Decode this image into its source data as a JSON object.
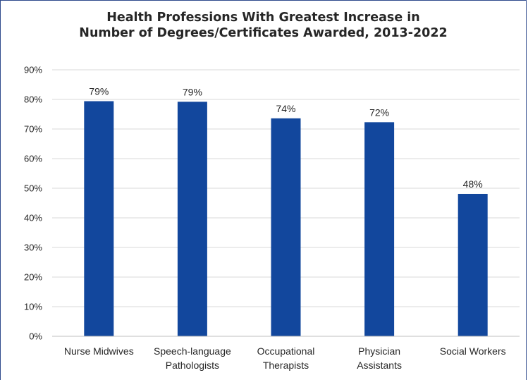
{
  "chart_data": {
    "type": "bar",
    "title_lines": [
      "Health Professions With Greatest Increase in",
      "Number of Degrees/Certificates Awarded, 2013-2022"
    ],
    "categories": [
      [
        "Nurse Midwives"
      ],
      [
        "Speech-language",
        "Pathologists"
      ],
      [
        "Occupational",
        "Therapists"
      ],
      [
        "Physician",
        "Assistants"
      ],
      [
        "Social Workers"
      ]
    ],
    "values": [
      79.4,
      79.2,
      73.6,
      72.3,
      48.1
    ],
    "data_labels": [
      "79%",
      "79%",
      "74%",
      "72%",
      "48%"
    ],
    "ylim": [
      0,
      90
    ],
    "yticks": [
      0,
      10,
      20,
      30,
      40,
      50,
      60,
      70,
      80,
      90
    ],
    "ytick_labels": [
      "0%",
      "10%",
      "20%",
      "30%",
      "40%",
      "50%",
      "60%",
      "70%",
      "80%",
      "90%"
    ],
    "xlabel": "",
    "ylabel": "",
    "grid": "horizontal",
    "legend": "none",
    "colors": {
      "bar": "#12479d",
      "grid": "#d9d9d9",
      "axis": "#bfbfbf",
      "text": "#262626"
    }
  }
}
